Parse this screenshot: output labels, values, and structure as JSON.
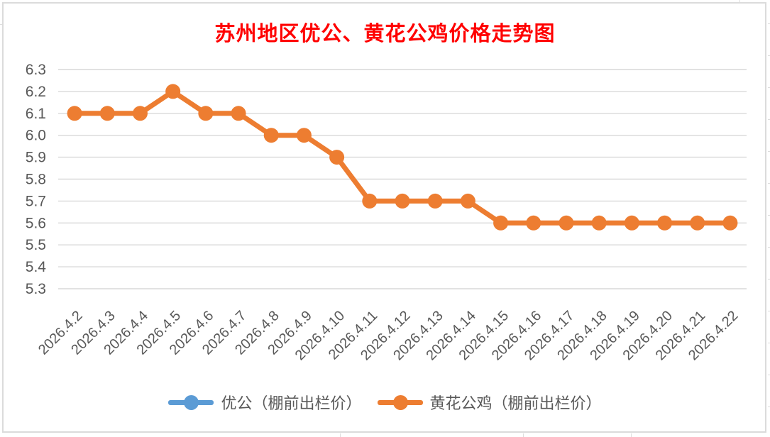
{
  "chart": {
    "title": "苏州地区优公、黄花公鸡价格走势图",
    "title_color": "#FF0000"
  },
  "legend": {
    "items": [
      {
        "label": "优公（棚前出栏价）",
        "color": "#5B9BD5"
      },
      {
        "label": "黄花公鸡（棚前出栏价）",
        "color": "#ED7D31"
      }
    ]
  },
  "chart_data": {
    "type": "line",
    "title": "苏州地区优公、黄花公鸡价格走势图",
    "categories": [
      "2026.4.2",
      "2026.4.3",
      "2026.4.4",
      "2026.4.5",
      "2026.4.6",
      "2026.4.7",
      "2026.4.8",
      "2026.4.9",
      "2026.4.10",
      "2026.4.11",
      "2026.4.12",
      "2026.4.13",
      "2026.4.14",
      "2026.4.15",
      "2026.4.16",
      "2026.4.17",
      "2026.4.18",
      "2026.4.19",
      "2026.4.20",
      "2026.4.21",
      "2026.4.22"
    ],
    "series": [
      {
        "name": "优公（棚前出栏价）",
        "color": "#5B9BD5",
        "marker": "circle",
        "values": null,
        "visible_in_plot": false
      },
      {
        "name": "黄花公鸡（棚前出栏价）",
        "color": "#ED7D31",
        "marker": "circle",
        "values": [
          6.1,
          6.1,
          6.1,
          6.2,
          6.1,
          6.1,
          6.0,
          6.0,
          5.9,
          5.7,
          5.7,
          5.7,
          5.7,
          5.6,
          5.6,
          5.6,
          5.6,
          5.6,
          5.6,
          5.6,
          5.6
        ]
      }
    ],
    "ylim": [
      5.3,
      6.3
    ],
    "ytick_step": 0.1,
    "yticks": [
      "6.3",
      "6.2",
      "6.1",
      "6.0",
      "5.9",
      "5.8",
      "5.7",
      "5.6",
      "5.5",
      "5.4",
      "5.3"
    ],
    "grid": true,
    "gridline_color": "#D9D9D9",
    "axis_text_color": "#595959",
    "legend_position": "bottom",
    "xlabel": "",
    "ylabel": ""
  }
}
